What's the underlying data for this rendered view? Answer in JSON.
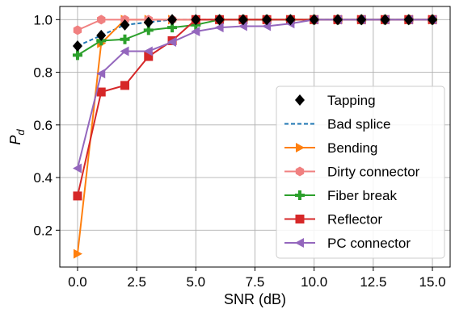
{
  "chart_data": {
    "type": "line",
    "xlabel": "SNR (dB)",
    "ylabel_main": "P",
    "ylabel_sub": "d",
    "xlim": [
      -0.75,
      15.75
    ],
    "ylim": [
      0.06,
      1.05
    ],
    "xticks": [
      0.0,
      2.5,
      5.0,
      7.5,
      10.0,
      12.5,
      15.0
    ],
    "xtick_labels": [
      "0.0",
      "2.5",
      "5.0",
      "7.5",
      "10.0",
      "12.5",
      "15.0"
    ],
    "yticks": [
      0.2,
      0.4,
      0.6,
      0.8,
      1.0
    ],
    "ytick_labels": [
      "0.2",
      "0.4",
      "0.6",
      "0.8",
      "1.0"
    ],
    "grid": true,
    "legend_position": "lower-right",
    "x": [
      0,
      1,
      2,
      3,
      4,
      5,
      6,
      7,
      8,
      9,
      10,
      11,
      12,
      13,
      14,
      15
    ],
    "series": [
      {
        "name": "Tapping",
        "color": "#000000",
        "marker": "diamond",
        "line": "none",
        "values": [
          0.9,
          0.94,
          0.98,
          0.99,
          1.0,
          1.0,
          1.0,
          1.0,
          1.0,
          1.0,
          1.0,
          1.0,
          1.0,
          1.0,
          1.0,
          1.0
        ]
      },
      {
        "name": "Bad splice",
        "color": "#1f77b4",
        "marker": "none",
        "line": "dashed",
        "values": [
          0.9,
          0.94,
          0.98,
          0.99,
          1.0,
          1.0,
          1.0,
          1.0,
          1.0,
          1.0,
          1.0,
          1.0,
          1.0,
          1.0,
          1.0,
          1.0
        ]
      },
      {
        "name": "Bending",
        "color": "#ff7f0e",
        "marker": "triangle-right",
        "line": "solid",
        "values": [
          0.11,
          0.91,
          1.0,
          1.0,
          1.0,
          1.0,
          1.0,
          1.0,
          1.0,
          1.0,
          1.0,
          1.0,
          1.0,
          1.0,
          1.0,
          1.0
        ]
      },
      {
        "name": "Dirty connector",
        "color": "#f08080",
        "marker": "hexagon",
        "line": "solid",
        "values": [
          0.96,
          1.0,
          1.0,
          1.0,
          1.0,
          1.0,
          1.0,
          1.0,
          1.0,
          1.0,
          1.0,
          1.0,
          1.0,
          1.0,
          1.0,
          1.0
        ]
      },
      {
        "name": "Fiber break",
        "color": "#2ca02c",
        "marker": "plus",
        "line": "solid",
        "values": [
          0.865,
          0.92,
          0.925,
          0.96,
          0.97,
          0.98,
          1.0,
          1.0,
          1.0,
          1.0,
          1.0,
          1.0,
          1.0,
          1.0,
          1.0,
          1.0
        ]
      },
      {
        "name": "Reflector",
        "color": "#d62728",
        "marker": "square",
        "line": "solid",
        "values": [
          0.33,
          0.725,
          0.75,
          0.86,
          0.92,
          1.0,
          1.0,
          1.0,
          1.0,
          1.0,
          1.0,
          1.0,
          1.0,
          1.0,
          1.0,
          1.0
        ]
      },
      {
        "name": "PC connector",
        "color": "#9467bd",
        "marker": "triangle-left",
        "line": "solid",
        "values": [
          0.435,
          0.795,
          0.88,
          0.88,
          0.915,
          0.955,
          0.97,
          0.975,
          0.975,
          0.985,
          1.0,
          1.0,
          1.0,
          1.0,
          1.0,
          1.0
        ]
      }
    ]
  }
}
